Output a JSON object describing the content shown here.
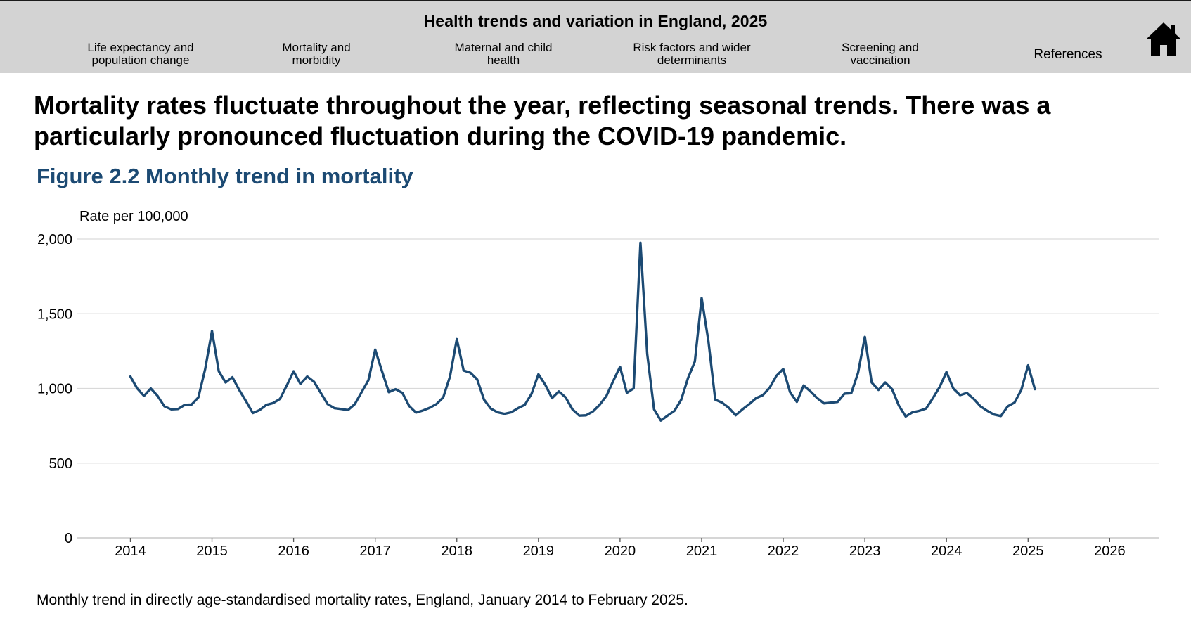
{
  "header": {
    "title": "Health trends and variation in England, 2025",
    "nav": [
      {
        "line1": "Life expectancy and",
        "line2": "population change"
      },
      {
        "line1": "Mortality and",
        "line2": "morbidity"
      },
      {
        "line1": "Maternal and child",
        "line2": "health"
      },
      {
        "line1": "Risk factors and wider",
        "line2": "determinants"
      },
      {
        "line1": "Screening and",
        "line2": "vaccination"
      }
    ],
    "references_label": "References",
    "home_icon": "home-icon"
  },
  "main": {
    "headline": "Mortality rates fluctuate throughout the year, reflecting seasonal trends. There was a particularly pronounced fluctuation during the COVID-19 pandemic.",
    "figure_title": "Figure 2.2 Monthly trend in mortality",
    "caption": "Monthly trend in directly age-standardised mortality rates, England, January 2014 to February 2025."
  },
  "colors": {
    "line": "#1c4a73",
    "title": "#1c4a73",
    "grid": "#d9d9d9",
    "header_bg": "#d3d3d3"
  },
  "chart_data": {
    "type": "line",
    "title": "Figure 2.2 Monthly trend in mortality",
    "ylabel": "Rate per 100,000",
    "xlabel": "",
    "ylim": [
      0,
      2000
    ],
    "yticks": [
      0,
      500,
      1000,
      1500,
      2000
    ],
    "ytick_labels": [
      "0",
      "500",
      "1,000",
      "1,500",
      "2,000"
    ],
    "xlim": [
      2013.35,
      2026.6
    ],
    "xticks": [
      2014,
      2015,
      2016,
      2017,
      2018,
      2019,
      2020,
      2021,
      2022,
      2023,
      2024,
      2025,
      2026
    ],
    "xtick_labels": [
      "2014",
      "2015",
      "2016",
      "2017",
      "2018",
      "2019",
      "2020",
      "2021",
      "2022",
      "2023",
      "2024",
      "2025",
      "2026"
    ],
    "grid": true,
    "series": [
      {
        "name": "Monthly age-standardised mortality rate",
        "start_year": 2014,
        "start_month": 1,
        "values": [
          1080,
          1000,
          950,
          1000,
          950,
          880,
          860,
          862,
          890,
          892,
          940,
          1130,
          1385,
          1115,
          1040,
          1075,
          990,
          915,
          835,
          855,
          890,
          902,
          930,
          1020,
          1115,
          1030,
          1080,
          1045,
          970,
          895,
          868,
          862,
          855,
          895,
          975,
          1055,
          1260,
          1115,
          975,
          995,
          970,
          882,
          838,
          852,
          870,
          895,
          940,
          1080,
          1330,
          1120,
          1105,
          1060,
          925,
          865,
          840,
          830,
          840,
          868,
          890,
          965,
          1095,
          1025,
          935,
          980,
          940,
          860,
          818,
          820,
          845,
          890,
          950,
          1050,
          1145,
          970,
          1000,
          1975,
          1230,
          860,
          785,
          818,
          850,
          925,
          1070,
          1180,
          1605,
          1315,
          925,
          905,
          870,
          820,
          860,
          895,
          935,
          955,
          1005,
          1085,
          1130,
          975,
          910,
          1020,
          980,
          935,
          900,
          905,
          910,
          965,
          968,
          1105,
          1345,
          1040,
          990,
          1040,
          995,
          885,
          812,
          840,
          850,
          865,
          935,
          1010,
          1110,
          1000,
          955,
          970,
          930,
          880,
          850,
          825,
          815,
          880,
          905,
          990,
          1155,
          995
        ]
      }
    ]
  }
}
